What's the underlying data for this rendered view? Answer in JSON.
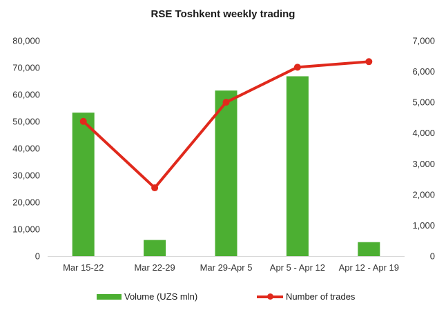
{
  "chart_data": {
    "type": "bar",
    "title": "RSE Toshkent weekly trading",
    "categories": [
      "Mar 15-22",
      "Mar 22-29",
      "Mar 29-Apr 5",
      "Apr 5 - Apr 12",
      "Apr 12 - Apr 19"
    ],
    "series": [
      {
        "name": "Volume (UZS mln)",
        "type": "bar",
        "axis": "left",
        "values": [
          53300,
          6000,
          61500,
          66800,
          5200
        ],
        "color": "#4caf32"
      },
      {
        "name": "Number of trades",
        "type": "line",
        "axis": "right",
        "values": [
          4380,
          2220,
          5000,
          6140,
          6320
        ],
        "color": "#e0291c"
      }
    ],
    "ylim_left": [
      0,
      80000
    ],
    "yticks_left": [
      "0",
      "10,000",
      "20,000",
      "30,000",
      "40,000",
      "50,000",
      "60,000",
      "70,000",
      "80,000"
    ],
    "ylim_right": [
      0,
      7000
    ],
    "yticks_right": [
      "0",
      "1,000",
      "2,000",
      "3,000",
      "4,000",
      "5,000",
      "6,000",
      "7,000"
    ],
    "grid": false,
    "legend_position": "bottom"
  }
}
